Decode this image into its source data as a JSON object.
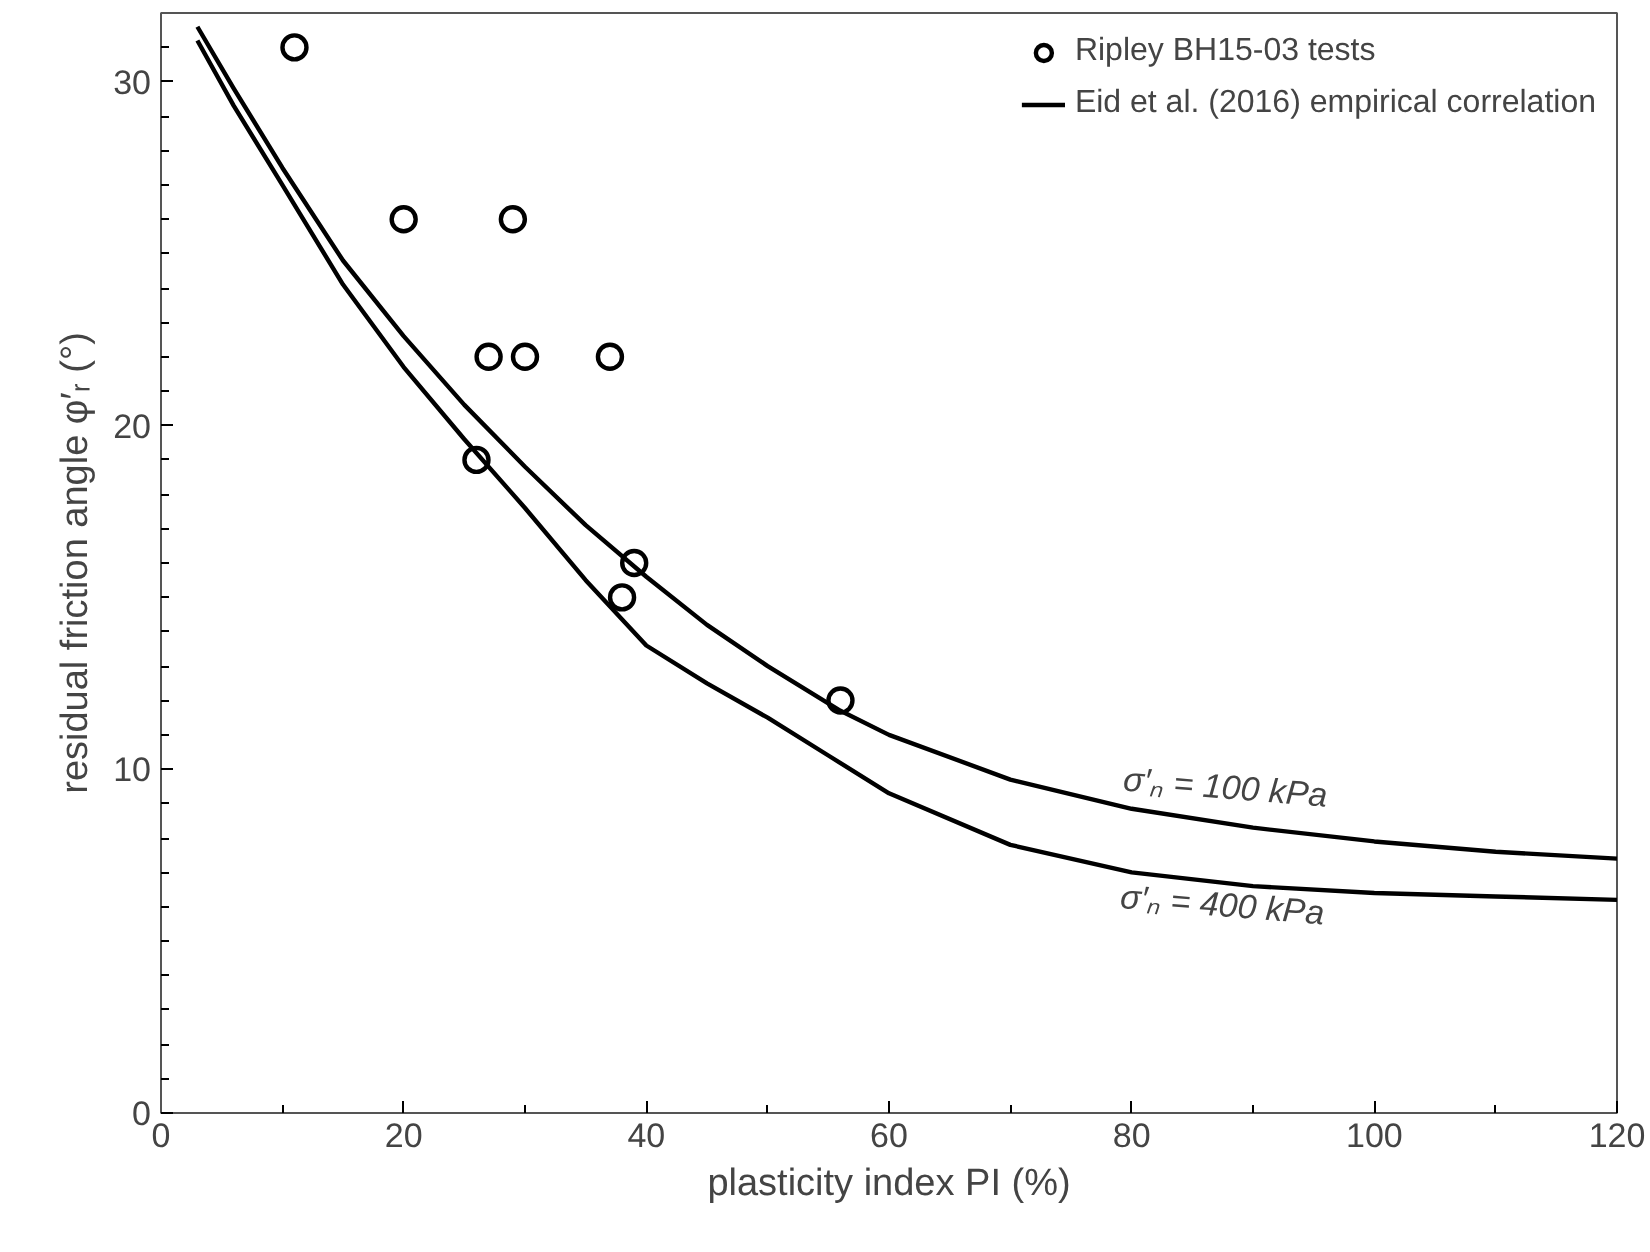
{
  "chart_data": {
    "type": "scatter",
    "xlabel": "plasticity index PI (%)",
    "ylabel": "residual friction angle φ′ᵣ (°)",
    "xlim": [
      0,
      120
    ],
    "ylim": [
      0,
      32
    ],
    "xticks": [
      0,
      {
        "value": 10,
        "label": null
      },
      20,
      {
        "value": 30,
        "label": null
      },
      40,
      {
        "value": 50,
        "label": null
      },
      60,
      {
        "value": 70,
        "label": null
      },
      80,
      {
        "value": 90,
        "label": null
      },
      100,
      {
        "value": 110,
        "label": null
      },
      120
    ],
    "yticks": [
      0,
      {
        "value": 1,
        "label": null
      },
      {
        "value": 2,
        "label": null
      },
      {
        "value": 3,
        "label": null
      },
      {
        "value": 4,
        "label": null
      },
      {
        "value": 5,
        "label": null
      },
      {
        "value": 6,
        "label": null
      },
      {
        "value": 7,
        "label": null
      },
      {
        "value": 8,
        "label": null
      },
      {
        "value": 9,
        "label": null
      },
      10,
      {
        "value": 11,
        "label": null
      },
      {
        "value": 12,
        "label": null
      },
      {
        "value": 13,
        "label": null
      },
      {
        "value": 14,
        "label": null
      },
      {
        "value": 15,
        "label": null
      },
      {
        "value": 16,
        "label": null
      },
      {
        "value": 17,
        "label": null
      },
      {
        "value": 18,
        "label": null
      },
      {
        "value": 19,
        "label": null
      },
      20,
      {
        "value": 21,
        "label": null
      },
      {
        "value": 22,
        "label": null
      },
      {
        "value": 23,
        "label": null
      },
      {
        "value": 24,
        "label": null
      },
      {
        "value": 25,
        "label": null
      },
      {
        "value": 26,
        "label": null
      },
      {
        "value": 27,
        "label": null
      },
      {
        "value": 28,
        "label": null
      },
      {
        "value": 29,
        "label": null
      },
      30,
      {
        "value": 31,
        "label": null
      }
    ],
    "grid": false,
    "legend": "top right",
    "series": [
      {
        "name": "Ripley BH15-03 tests",
        "marker": "circle",
        "color": "#000000",
        "x": [
          11,
          20,
          29,
          27,
          30,
          37,
          26,
          39,
          38,
          56
        ],
        "values": [
          31,
          26,
          26,
          22,
          22,
          22,
          19,
          16,
          15,
          12
        ]
      },
      {
        "name": "Eid et al. (2016) empirical correlation",
        "type": "line",
        "line_style": "solid",
        "color": "#000000",
        "x": [
          3,
          6,
          10,
          15,
          20,
          25,
          30,
          35,
          40,
          45,
          50,
          56,
          60,
          70,
          80,
          90,
          100,
          110,
          120
        ],
        "values": [
          31.6,
          29.8,
          27.5,
          24.8,
          22.6,
          20.6,
          18.8,
          17.1,
          15.6,
          14.2,
          13.0,
          11.7,
          11.0,
          9.7,
          8.85,
          8.3,
          7.9,
          7.6,
          7.4
        ]
      },
      {
        "type": "line",
        "line_style": "solid",
        "color": "#000000",
        "x": [
          3,
          6,
          10,
          15,
          20,
          25,
          30,
          35,
          40,
          45,
          50,
          55,
          60,
          70,
          80,
          90,
          100,
          110,
          120
        ],
        "values": [
          31.2,
          29.3,
          27.0,
          24.1,
          21.7,
          19.6,
          17.6,
          15.5,
          13.6,
          12.5,
          11.5,
          10.4,
          9.3,
          7.8,
          7.0,
          6.6,
          6.4,
          6.3,
          6.2
        ]
      }
    ],
    "annotations": [
      "σ′ₙ = 100 kPa",
      "σ′ₙ = 400 kPa"
    ]
  }
}
